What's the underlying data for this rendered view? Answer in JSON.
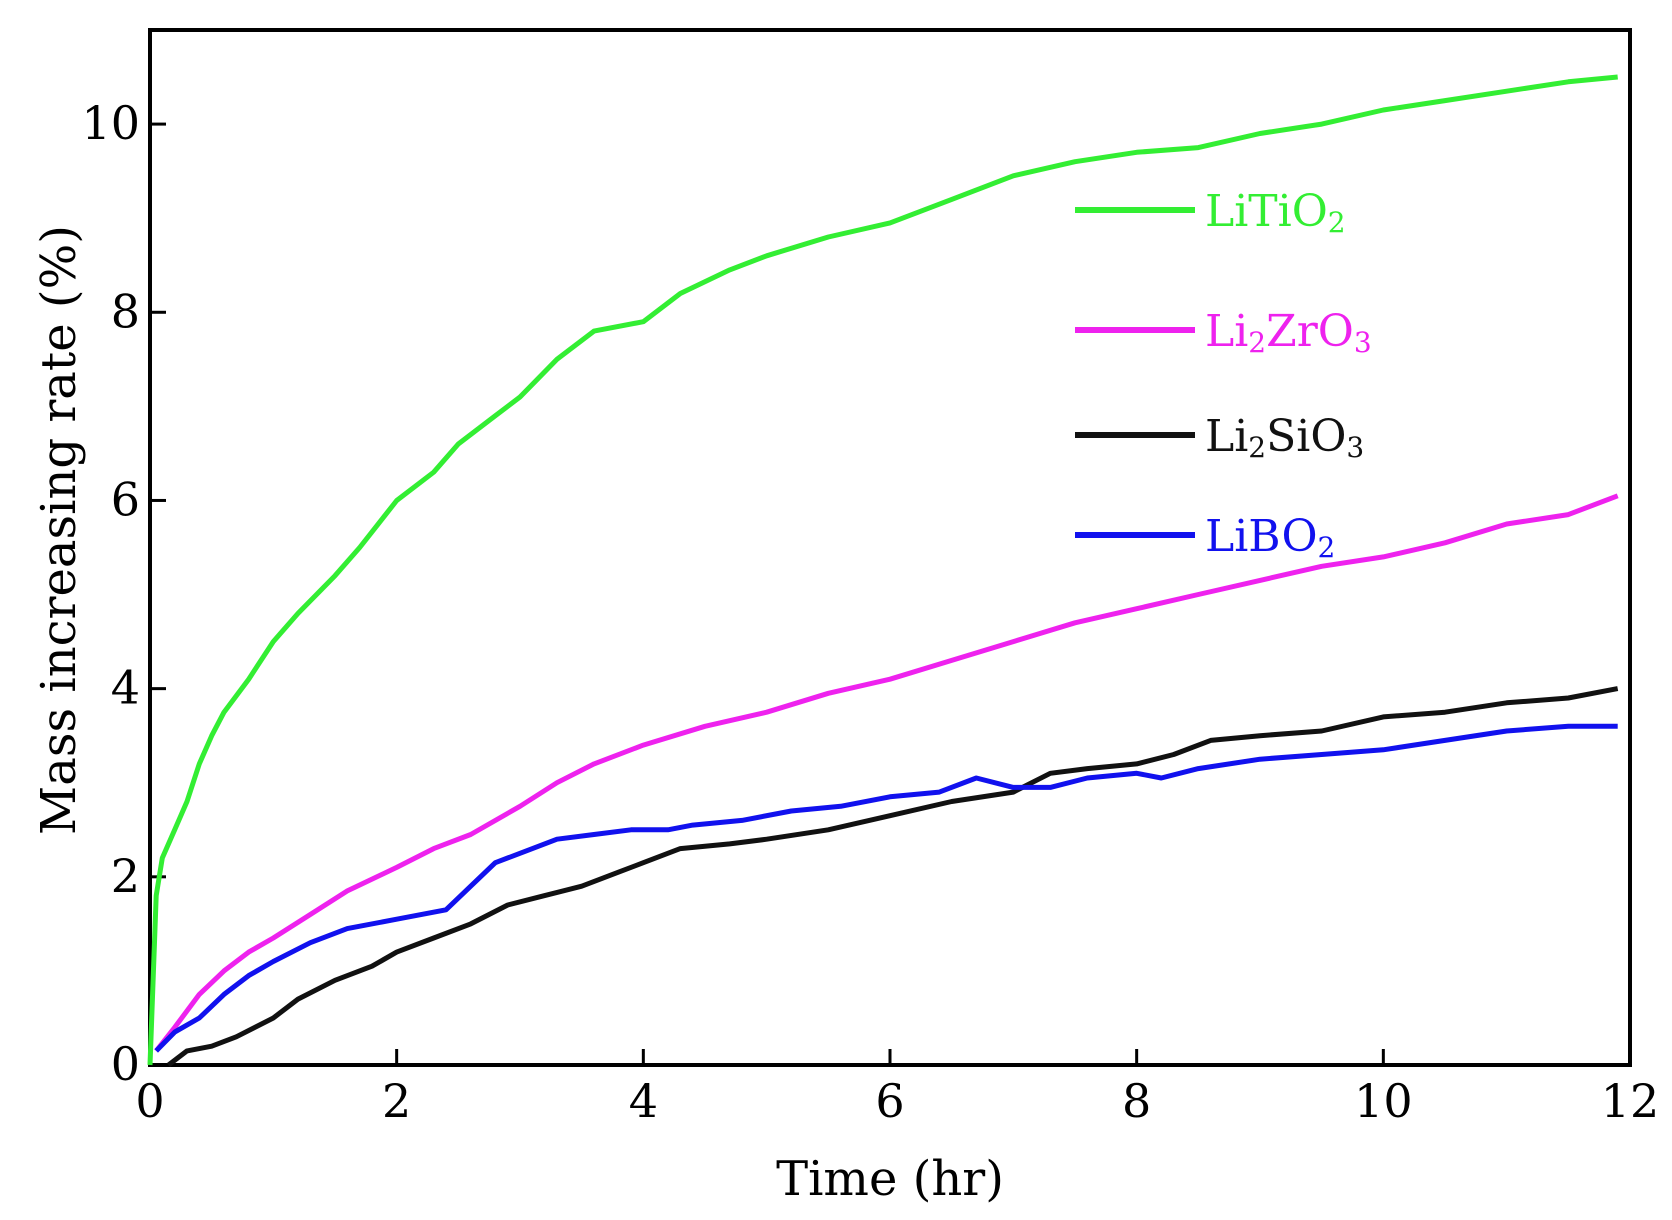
{
  "chart_data": {
    "type": "line",
    "title": "",
    "xlabel": "Time (hr)",
    "ylabel": "Mass increasing rate (%)",
    "xlim": [
      0,
      12
    ],
    "ylim": [
      0,
      11
    ],
    "xticks": [
      0,
      2,
      4,
      6,
      8,
      10,
      12
    ],
    "yticks": [
      0,
      2,
      4,
      6,
      8,
      10
    ],
    "xtick_labels": [
      "0",
      "2",
      "4",
      "6",
      "8",
      "10",
      "12"
    ],
    "ytick_labels": [
      "0",
      "2",
      "4",
      "6",
      "8",
      "10"
    ],
    "grid": false,
    "legend": "top-right",
    "series": [
      {
        "name": "LiTiO2",
        "label_main": "LiTiO",
        "label_sub": "2",
        "label_tail": "",
        "color": "#33ee33",
        "points": [
          [
            0.0,
            0.0
          ],
          [
            0.05,
            1.8
          ],
          [
            0.1,
            2.2
          ],
          [
            0.2,
            2.5
          ],
          [
            0.3,
            2.8
          ],
          [
            0.4,
            3.2
          ],
          [
            0.5,
            3.5
          ],
          [
            0.6,
            3.75
          ],
          [
            0.8,
            4.1
          ],
          [
            1.0,
            4.5
          ],
          [
            1.2,
            4.8
          ],
          [
            1.5,
            5.2
          ],
          [
            1.7,
            5.5
          ],
          [
            2.0,
            6.0
          ],
          [
            2.3,
            6.3
          ],
          [
            2.5,
            6.6
          ],
          [
            2.8,
            6.9
          ],
          [
            3.0,
            7.1
          ],
          [
            3.3,
            7.5
          ],
          [
            3.6,
            7.8
          ],
          [
            4.0,
            7.9
          ],
          [
            4.3,
            8.2
          ],
          [
            4.7,
            8.45
          ],
          [
            5.0,
            8.6
          ],
          [
            5.5,
            8.8
          ],
          [
            6.0,
            8.95
          ],
          [
            6.5,
            9.2
          ],
          [
            7.0,
            9.45
          ],
          [
            7.5,
            9.6
          ],
          [
            8.0,
            9.7
          ],
          [
            8.5,
            9.75
          ],
          [
            9.0,
            9.9
          ],
          [
            9.5,
            10.0
          ],
          [
            10.0,
            10.15
          ],
          [
            10.5,
            10.25
          ],
          [
            11.0,
            10.35
          ],
          [
            11.5,
            10.45
          ],
          [
            11.9,
            10.5
          ]
        ]
      },
      {
        "name": "Li2ZrO3",
        "label_main": "Li",
        "label_sub": "2",
        "label_tail": "ZrO",
        "label_sub2": "3",
        "color": "#ee22ee",
        "points": [
          [
            0.05,
            0.15
          ],
          [
            0.2,
            0.4
          ],
          [
            0.4,
            0.75
          ],
          [
            0.6,
            1.0
          ],
          [
            0.8,
            1.2
          ],
          [
            1.0,
            1.35
          ],
          [
            1.3,
            1.6
          ],
          [
            1.6,
            1.85
          ],
          [
            2.0,
            2.1
          ],
          [
            2.3,
            2.3
          ],
          [
            2.6,
            2.45
          ],
          [
            3.0,
            2.75
          ],
          [
            3.3,
            3.0
          ],
          [
            3.6,
            3.2
          ],
          [
            4.0,
            3.4
          ],
          [
            4.5,
            3.6
          ],
          [
            5.0,
            3.75
          ],
          [
            5.5,
            3.95
          ],
          [
            6.0,
            4.1
          ],
          [
            6.5,
            4.3
          ],
          [
            7.0,
            4.5
          ],
          [
            7.5,
            4.7
          ],
          [
            8.0,
            4.85
          ],
          [
            8.5,
            5.0
          ],
          [
            9.0,
            5.15
          ],
          [
            9.5,
            5.3
          ],
          [
            10.0,
            5.4
          ],
          [
            10.5,
            5.55
          ],
          [
            11.0,
            5.75
          ],
          [
            11.5,
            5.85
          ],
          [
            11.9,
            6.05
          ]
        ]
      },
      {
        "name": "Li2SiO3",
        "label_main": "Li",
        "label_sub": "2",
        "label_tail": "SiO",
        "label_sub2": "3",
        "color": "#111111",
        "points": [
          [
            0.15,
            0.0
          ],
          [
            0.3,
            0.15
          ],
          [
            0.5,
            0.2
          ],
          [
            0.7,
            0.3
          ],
          [
            1.0,
            0.5
          ],
          [
            1.2,
            0.7
          ],
          [
            1.5,
            0.9
          ],
          [
            1.8,
            1.05
          ],
          [
            2.0,
            1.2
          ],
          [
            2.3,
            1.35
          ],
          [
            2.6,
            1.5
          ],
          [
            2.9,
            1.7
          ],
          [
            3.2,
            1.8
          ],
          [
            3.5,
            1.9
          ],
          [
            3.8,
            2.05
          ],
          [
            4.0,
            2.15
          ],
          [
            4.3,
            2.3
          ],
          [
            4.7,
            2.35
          ],
          [
            5.0,
            2.4
          ],
          [
            5.5,
            2.5
          ],
          [
            6.0,
            2.65
          ],
          [
            6.5,
            2.8
          ],
          [
            7.0,
            2.9
          ],
          [
            7.3,
            3.1
          ],
          [
            7.6,
            3.15
          ],
          [
            8.0,
            3.2
          ],
          [
            8.3,
            3.3
          ],
          [
            8.6,
            3.45
          ],
          [
            9.0,
            3.5
          ],
          [
            9.5,
            3.55
          ],
          [
            10.0,
            3.7
          ],
          [
            10.5,
            3.75
          ],
          [
            11.0,
            3.85
          ],
          [
            11.5,
            3.9
          ],
          [
            11.9,
            4.0
          ]
        ]
      },
      {
        "name": "LiBO2",
        "label_main": "LiBO",
        "label_sub": "2",
        "label_tail": "",
        "color": "#1111ee",
        "points": [
          [
            0.05,
            0.15
          ],
          [
            0.2,
            0.35
          ],
          [
            0.4,
            0.5
          ],
          [
            0.6,
            0.75
          ],
          [
            0.8,
            0.95
          ],
          [
            1.0,
            1.1
          ],
          [
            1.3,
            1.3
          ],
          [
            1.6,
            1.45
          ],
          [
            2.0,
            1.55
          ],
          [
            2.4,
            1.65
          ],
          [
            2.6,
            1.9
          ],
          [
            2.8,
            2.15
          ],
          [
            3.0,
            2.25
          ],
          [
            3.3,
            2.4
          ],
          [
            3.6,
            2.45
          ],
          [
            3.9,
            2.5
          ],
          [
            4.2,
            2.5
          ],
          [
            4.4,
            2.55
          ],
          [
            4.8,
            2.6
          ],
          [
            5.2,
            2.7
          ],
          [
            5.6,
            2.75
          ],
          [
            6.0,
            2.85
          ],
          [
            6.4,
            2.9
          ],
          [
            6.7,
            3.05
          ],
          [
            7.0,
            2.95
          ],
          [
            7.3,
            2.95
          ],
          [
            7.6,
            3.05
          ],
          [
            8.0,
            3.1
          ],
          [
            8.2,
            3.05
          ],
          [
            8.5,
            3.15
          ],
          [
            9.0,
            3.25
          ],
          [
            9.5,
            3.3
          ],
          [
            10.0,
            3.35
          ],
          [
            10.5,
            3.45
          ],
          [
            11.0,
            3.55
          ],
          [
            11.5,
            3.6
          ],
          [
            11.9,
            3.6
          ]
        ]
      }
    ]
  }
}
